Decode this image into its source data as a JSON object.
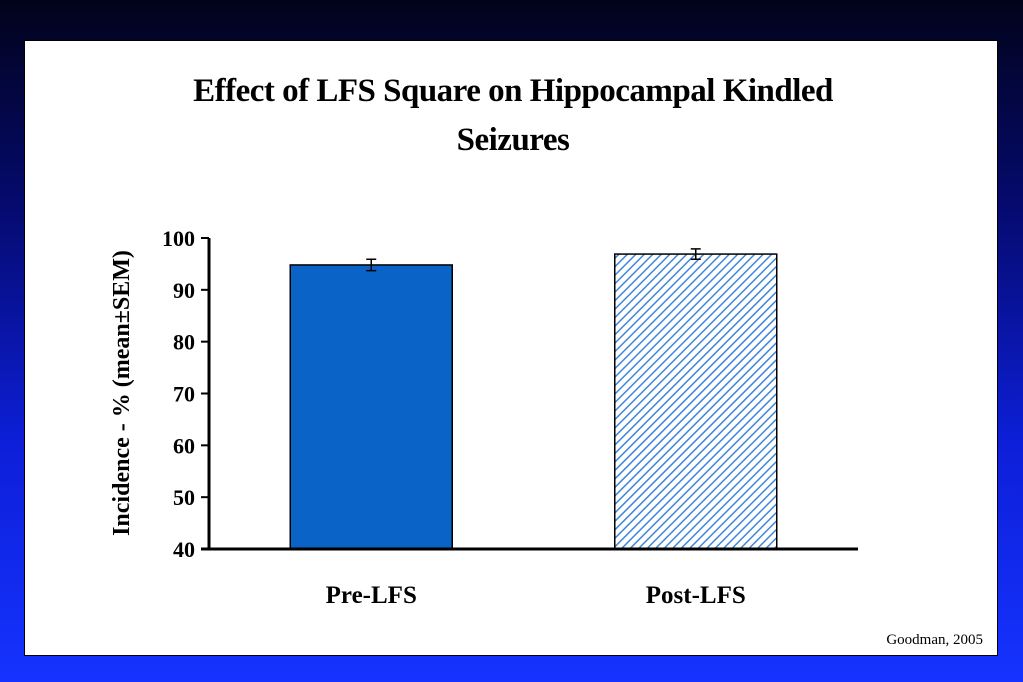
{
  "chart_data": {
    "type": "bar",
    "title": "Effect of LFS Square on Hippocampal Kindled Seizures",
    "title_lines": [
      "Effect of LFS Square on Hippocampal Kindled",
      "Seizures"
    ],
    "ylabel": "Incidence - % (mean±SEM)",
    "xlabel": "",
    "categories": [
      "Pre-LFS",
      "Post-LFS"
    ],
    "values": [
      94.8,
      96.9
    ],
    "errors": [
      1.1,
      1.0
    ],
    "ylim": [
      40,
      100
    ],
    "yticks": [
      100,
      90,
      80,
      70,
      60,
      50,
      40
    ],
    "bar_styles": [
      "solid",
      "diagonal-hatch"
    ],
    "colors": {
      "pre": "#0a64c8",
      "post_hatch": "#3f86d8"
    },
    "grid": false,
    "legend": "none"
  },
  "credit": "Goodman, 2005"
}
